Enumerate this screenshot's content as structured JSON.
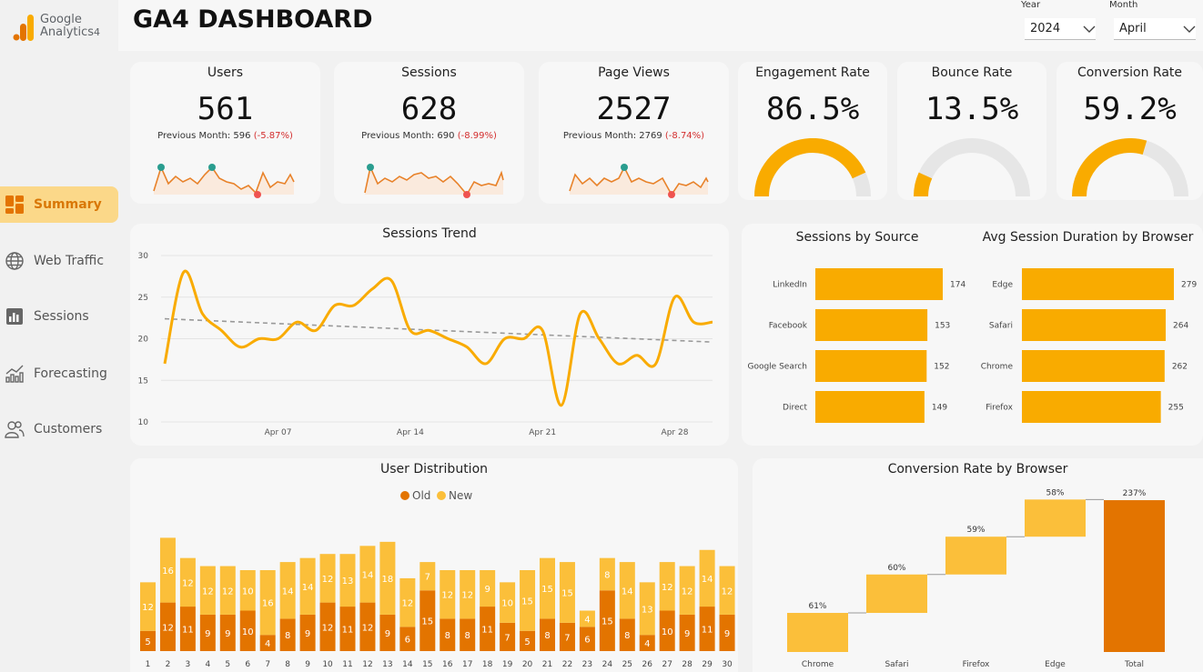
{
  "app": {
    "logo_line1": "Google",
    "logo_line2": "Analytics",
    "logo_sup": "4",
    "title": "GA4 DASHBOARD"
  },
  "filters": {
    "year_label": "Year",
    "year_value": "2024",
    "month_label": "Month",
    "month_value": "April"
  },
  "nav": [
    {
      "label": "Summary",
      "icon": "summary-icon",
      "active": true
    },
    {
      "label": "Web Traffic",
      "icon": "globe-icon",
      "active": false
    },
    {
      "label": "Sessions",
      "icon": "bar-chart-icon",
      "active": false
    },
    {
      "label": "Forecasting",
      "icon": "line-chart-icon",
      "active": false
    },
    {
      "label": "Customers",
      "icon": "users-icon",
      "active": false
    }
  ],
  "kpis": [
    {
      "title": "Users",
      "value": "561",
      "prev_label": "Previous Month: 596",
      "delta": "(-5.87%)"
    },
    {
      "title": "Sessions",
      "value": "628",
      "prev_label": "Previous Month: 690",
      "delta": "(-8.99%)"
    },
    {
      "title": "Page Views",
      "value": "2527",
      "prev_label": "Previous Month: 2769",
      "delta": "(-8.74%)"
    }
  ],
  "rates": [
    {
      "title": "Engagement Rate",
      "value": "86.5%",
      "fraction": 0.865
    },
    {
      "title": "Bounce Rate",
      "value": "13.5%",
      "fraction": 0.135
    },
    {
      "title": "Conversion Rate",
      "value": "59.2%",
      "fraction": 0.592
    }
  ],
  "colors": {
    "accent": "#f9ab00",
    "dark_orange": "#e37400",
    "light_orange": "#fbbf3a",
    "gauge_bg": "#e6e6e6",
    "negative": "#d32f2f",
    "sparkline": "#e8822a",
    "max_marker": "#2a9d8f",
    "min_marker": "#ef5350"
  },
  "chart_data": [
    {
      "type": "line",
      "title": "Sessions Trend",
      "x": [
        "Apr 01",
        "Apr 02",
        "Apr 03",
        "Apr 04",
        "Apr 05",
        "Apr 06",
        "Apr 07",
        "Apr 08",
        "Apr 09",
        "Apr 10",
        "Apr 11",
        "Apr 12",
        "Apr 13",
        "Apr 14",
        "Apr 15",
        "Apr 16",
        "Apr 17",
        "Apr 18",
        "Apr 19",
        "Apr 20",
        "Apr 21",
        "Apr 22",
        "Apr 23",
        "Apr 24",
        "Apr 25",
        "Apr 26",
        "Apr 27",
        "Apr 28",
        "Apr 29",
        "Apr 30"
      ],
      "x_ticks": [
        "Apr 07",
        "Apr 14",
        "Apr 21",
        "Apr 28"
      ],
      "series": [
        {
          "values": [
            17,
            28,
            23,
            21,
            19,
            20,
            20,
            22,
            21,
            24,
            24,
            26,
            27,
            21,
            21,
            20,
            19,
            17,
            20,
            20,
            21,
            12,
            23,
            20,
            17,
            18,
            17,
            25,
            22,
            22
          ]
        }
      ],
      "trend": {
        "start": 22.4,
        "end": 19.6
      },
      "ylim": [
        10,
        30
      ],
      "y_ticks": [
        10,
        15,
        20,
        25,
        30
      ]
    },
    {
      "type": "bar",
      "title": "Sessions by Source",
      "orientation": "horizontal",
      "categories": [
        "LinkedIn",
        "Facebook",
        "Google Search",
        "Direct"
      ],
      "values": [
        174,
        153,
        152,
        149
      ]
    },
    {
      "type": "bar",
      "title": "Avg Session Duration by Browser",
      "orientation": "horizontal",
      "categories": [
        "Edge",
        "Safari",
        "Chrome",
        "Firefox"
      ],
      "values": [
        279,
        264,
        262,
        255
      ]
    },
    {
      "type": "bar",
      "title": "User Distribution",
      "stacked": true,
      "categories": [
        "1",
        "2",
        "3",
        "4",
        "5",
        "6",
        "7",
        "8",
        "9",
        "10",
        "11",
        "12",
        "13",
        "14",
        "15",
        "16",
        "17",
        "18",
        "19",
        "20",
        "21",
        "22",
        "23",
        "24",
        "25",
        "26",
        "27",
        "28",
        "29",
        "30"
      ],
      "series": [
        {
          "name": "Old",
          "values": [
            5,
            12,
            11,
            9,
            9,
            10,
            4,
            8,
            9,
            12,
            11,
            12,
            9,
            6,
            15,
            8,
            8,
            11,
            7,
            5,
            8,
            7,
            6,
            15,
            8,
            4,
            10,
            9,
            11,
            9
          ]
        },
        {
          "name": "New",
          "values": [
            12,
            16,
            12,
            12,
            12,
            10,
            16,
            14,
            14,
            12,
            13,
            14,
            18,
            12,
            7,
            12,
            12,
            9,
            10,
            15,
            15,
            15,
            4,
            8,
            14,
            13,
            12,
            12,
            14,
            12
          ]
        }
      ],
      "legend": "top-center"
    },
    {
      "type": "bar",
      "title": "Conversion Rate by Browser",
      "waterfall": true,
      "categories": [
        "Chrome",
        "Safari",
        "Firefox",
        "Edge",
        "Total"
      ],
      "values": [
        61,
        60,
        59,
        58,
        237
      ],
      "labels": [
        "61%",
        "60%",
        "59%",
        "58%",
        "237%"
      ]
    }
  ]
}
